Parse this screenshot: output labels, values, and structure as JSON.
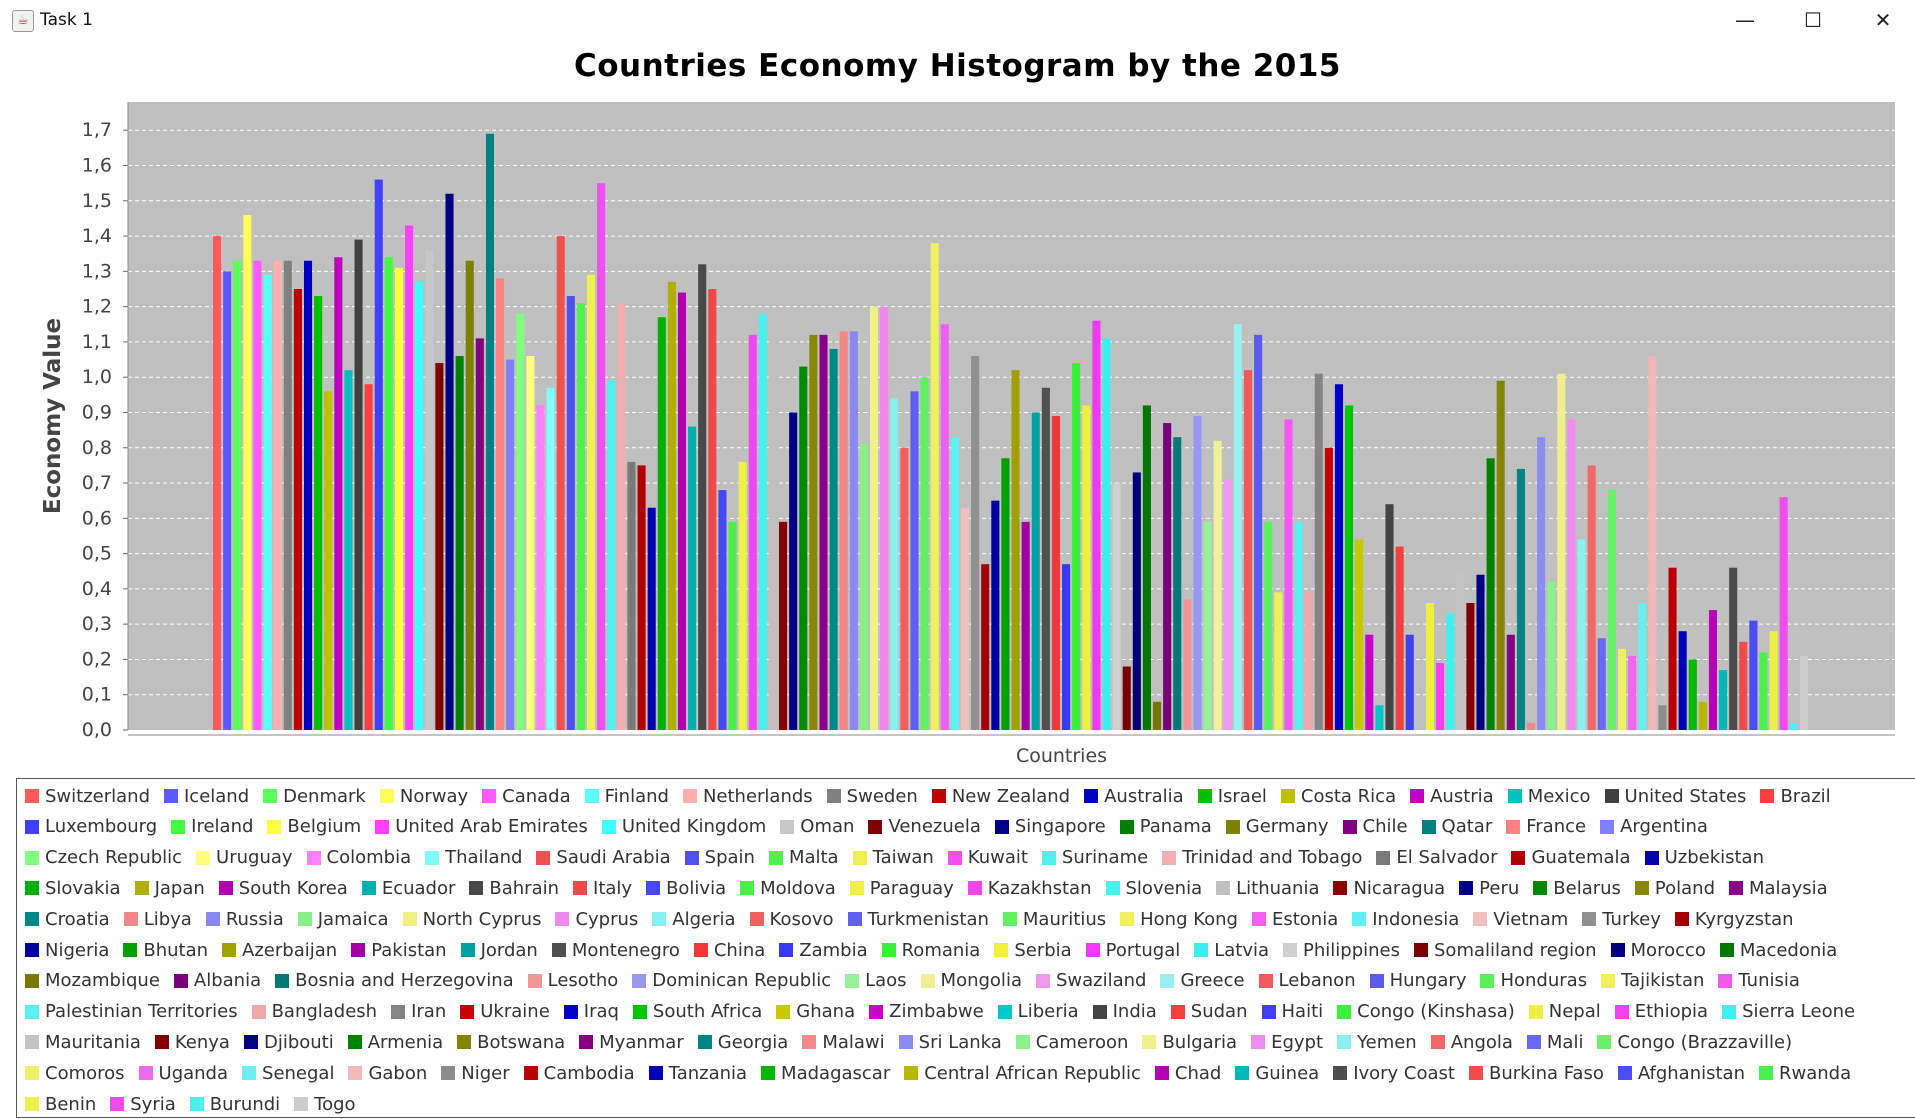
{
  "window": {
    "title": "Task 1",
    "minimize": "—",
    "maximize": "☐",
    "close": "✕"
  },
  "chart_data": {
    "type": "bar",
    "title": "Countries Economy Histogram by the 2015",
    "xlabel": "Countries",
    "ylabel": "Economy Value",
    "ylim": [
      0,
      1.78
    ],
    "yticks": [
      "0,0",
      "0,1",
      "0,2",
      "0,3",
      "0,4",
      "0,5",
      "0,6",
      "0,7",
      "0,8",
      "0,9",
      "1,0",
      "1,1",
      "1,2",
      "1,3",
      "1,4",
      "1,5",
      "1,6",
      "1,7"
    ],
    "grid": true,
    "legend_position": "bottom",
    "series": [
      {
        "name": "Switzerland",
        "value": 1.4,
        "color": "#ff5a5a"
      },
      {
        "name": "Iceland",
        "value": 1.3,
        "color": "#5a5aff"
      },
      {
        "name": "Denmark",
        "value": 1.33,
        "color": "#5aff5a"
      },
      {
        "name": "Norway",
        "value": 1.46,
        "color": "#ffff5a"
      },
      {
        "name": "Canada",
        "value": 1.33,
        "color": "#ff5aff"
      },
      {
        "name": "Finland",
        "value": 1.29,
        "color": "#5affff"
      },
      {
        "name": "Netherlands",
        "value": 1.33,
        "color": "#ffafaf"
      },
      {
        "name": "Sweden",
        "value": 1.33,
        "color": "#808080"
      },
      {
        "name": "New Zealand",
        "value": 1.25,
        "color": "#c00000"
      },
      {
        "name": "Australia",
        "value": 1.33,
        "color": "#0000c0"
      },
      {
        "name": "Israel",
        "value": 1.23,
        "color": "#00c000"
      },
      {
        "name": "Costa Rica",
        "value": 0.96,
        "color": "#c0c000"
      },
      {
        "name": "Austria",
        "value": 1.34,
        "color": "#c000c0"
      },
      {
        "name": "Mexico",
        "value": 1.02,
        "color": "#00c0c0"
      },
      {
        "name": "United States",
        "value": 1.39,
        "color": "#404040"
      },
      {
        "name": "Brazil",
        "value": 0.98,
        "color": "#ff4040"
      },
      {
        "name": "Luxembourg",
        "value": 1.56,
        "color": "#4040ff"
      },
      {
        "name": "Ireland",
        "value": 1.34,
        "color": "#40ff40"
      },
      {
        "name": "Belgium",
        "value": 1.31,
        "color": "#ffff40"
      },
      {
        "name": "United Arab Emirates",
        "value": 1.43,
        "color": "#ff40ff"
      },
      {
        "name": "United Kingdom",
        "value": 1.27,
        "color": "#40ffff"
      },
      {
        "name": "Oman",
        "value": 1.36,
        "color": "#c8c8c8"
      },
      {
        "name": "Venezuela",
        "value": 1.04,
        "color": "#800000"
      },
      {
        "name": "Singapore",
        "value": 1.52,
        "color": "#000080"
      },
      {
        "name": "Panama",
        "value": 1.06,
        "color": "#008000"
      },
      {
        "name": "Germany",
        "value": 1.33,
        "color": "#808000"
      },
      {
        "name": "Chile",
        "value": 1.11,
        "color": "#800080"
      },
      {
        "name": "Qatar",
        "value": 1.69,
        "color": "#008080"
      },
      {
        "name": "France",
        "value": 1.28,
        "color": "#ff8080"
      },
      {
        "name": "Argentina",
        "value": 1.05,
        "color": "#8080ff"
      },
      {
        "name": "Czech Republic",
        "value": 1.18,
        "color": "#80ff80"
      },
      {
        "name": "Uruguay",
        "value": 1.06,
        "color": "#ffff80"
      },
      {
        "name": "Colombia",
        "value": 0.92,
        "color": "#ff80ff"
      },
      {
        "name": "Thailand",
        "value": 0.97,
        "color": "#80ffff"
      },
      {
        "name": "Saudi Arabia",
        "value": 1.4,
        "color": "#f05050"
      },
      {
        "name": "Spain",
        "value": 1.23,
        "color": "#5050f0"
      },
      {
        "name": "Malta",
        "value": 1.21,
        "color": "#50f050"
      },
      {
        "name": "Taiwan",
        "value": 1.29,
        "color": "#f0f050"
      },
      {
        "name": "Kuwait",
        "value": 1.55,
        "color": "#f050f0"
      },
      {
        "name": "Suriname",
        "value": 0.99,
        "color": "#50f0f0"
      },
      {
        "name": "Trinidad and Tobago",
        "value": 1.21,
        "color": "#f0b0b0"
      },
      {
        "name": "El Salvador",
        "value": 0.76,
        "color": "#7a7a7a"
      },
      {
        "name": "Guatemala",
        "value": 0.75,
        "color": "#b00000"
      },
      {
        "name": "Uzbekistan",
        "value": 0.63,
        "color": "#0000b0"
      },
      {
        "name": "Slovakia",
        "value": 1.17,
        "color": "#00b000"
      },
      {
        "name": "Japan",
        "value": 1.27,
        "color": "#b0b000"
      },
      {
        "name": "South Korea",
        "value": 1.24,
        "color": "#b000b0"
      },
      {
        "name": "Ecuador",
        "value": 0.86,
        "color": "#00b0b0"
      },
      {
        "name": "Bahrain",
        "value": 1.32,
        "color": "#484848"
      },
      {
        "name": "Italy",
        "value": 1.25,
        "color": "#f04848"
      },
      {
        "name": "Bolivia",
        "value": 0.68,
        "color": "#4848f0"
      },
      {
        "name": "Moldova",
        "value": 0.59,
        "color": "#48f048"
      },
      {
        "name": "Paraguay",
        "value": 0.76,
        "color": "#f0f048"
      },
      {
        "name": "Kazakhstan",
        "value": 1.12,
        "color": "#f048f0"
      },
      {
        "name": "Slovenia",
        "value": 1.18,
        "color": "#48f0f0"
      },
      {
        "name": "Lithuania",
        "value": 1.15,
        "color": "#c0c0c0"
      },
      {
        "name": "Nicaragua",
        "value": 0.59,
        "color": "#880000"
      },
      {
        "name": "Peru",
        "value": 0.9,
        "color": "#000088"
      },
      {
        "name": "Belarus",
        "value": 1.03,
        "color": "#008800"
      },
      {
        "name": "Poland",
        "value": 1.12,
        "color": "#888800"
      },
      {
        "name": "Malaysia",
        "value": 1.12,
        "color": "#880088"
      },
      {
        "name": "Croatia",
        "value": 1.08,
        "color": "#008888"
      },
      {
        "name": "Libya",
        "value": 1.13,
        "color": "#f08888"
      },
      {
        "name": "Russia",
        "value": 1.13,
        "color": "#8888f0"
      },
      {
        "name": "Jamaica",
        "value": 0.81,
        "color": "#88f088"
      },
      {
        "name": "North Cyprus",
        "value": 1.2,
        "color": "#f0f088"
      },
      {
        "name": "Cyprus",
        "value": 1.2,
        "color": "#f088f0"
      },
      {
        "name": "Algeria",
        "value": 0.94,
        "color": "#88f0f0"
      },
      {
        "name": "Kosovo",
        "value": 0.8,
        "color": "#f06060"
      },
      {
        "name": "Turkmenistan",
        "value": 0.96,
        "color": "#6060f0"
      },
      {
        "name": "Mauritius",
        "value": 1.0,
        "color": "#60f060"
      },
      {
        "name": "Hong Kong",
        "value": 1.38,
        "color": "#f0f060"
      },
      {
        "name": "Estonia",
        "value": 1.15,
        "color": "#f060f0"
      },
      {
        "name": "Indonesia",
        "value": 0.83,
        "color": "#60f0f0"
      },
      {
        "name": "Vietnam",
        "value": 0.63,
        "color": "#f0c0c0"
      },
      {
        "name": "Turkey",
        "value": 1.06,
        "color": "#909090"
      },
      {
        "name": "Kyrgyzstan",
        "value": 0.47,
        "color": "#a00000"
      },
      {
        "name": "Nigeria",
        "value": 0.65,
        "color": "#0000a0"
      },
      {
        "name": "Bhutan",
        "value": 0.77,
        "color": "#00a000"
      },
      {
        "name": "Azerbaijan",
        "value": 1.02,
        "color": "#a0a000"
      },
      {
        "name": "Pakistan",
        "value": 0.59,
        "color": "#a000a0"
      },
      {
        "name": "Jordan",
        "value": 0.9,
        "color": "#00a0a0"
      },
      {
        "name": "Montenegro",
        "value": 0.97,
        "color": "#505050"
      },
      {
        "name": "China",
        "value": 0.89,
        "color": "#f03838"
      },
      {
        "name": "Zambia",
        "value": 0.47,
        "color": "#3838f0"
      },
      {
        "name": "Romania",
        "value": 1.04,
        "color": "#38f038"
      },
      {
        "name": "Serbia",
        "value": 0.92,
        "color": "#f0f038"
      },
      {
        "name": "Portugal",
        "value": 1.16,
        "color": "#f038f0"
      },
      {
        "name": "Latvia",
        "value": 1.11,
        "color": "#38f0f0"
      },
      {
        "name": "Philippines",
        "value": 0.7,
        "color": "#d0d0d0"
      },
      {
        "name": "Somaliland region",
        "value": 0.18,
        "color": "#780000"
      },
      {
        "name": "Morocco",
        "value": 0.73,
        "color": "#000078"
      },
      {
        "name": "Macedonia",
        "value": 0.92,
        "color": "#007800"
      },
      {
        "name": "Mozambique",
        "value": 0.08,
        "color": "#787800"
      },
      {
        "name": "Albania",
        "value": 0.87,
        "color": "#780078"
      },
      {
        "name": "Bosnia and Herzegovina",
        "value": 0.83,
        "color": "#007878"
      },
      {
        "name": "Lesotho",
        "value": 0.37,
        "color": "#f09898"
      },
      {
        "name": "Dominican Republic",
        "value": 0.89,
        "color": "#9898f0"
      },
      {
        "name": "Laos",
        "value": 0.59,
        "color": "#98f098"
      },
      {
        "name": "Mongolia",
        "value": 0.82,
        "color": "#f0f098"
      },
      {
        "name": "Swaziland",
        "value": 0.71,
        "color": "#f098f0"
      },
      {
        "name": "Greece",
        "value": 1.15,
        "color": "#98f0f0"
      },
      {
        "name": "Lebanon",
        "value": 1.02,
        "color": "#f05a5a"
      },
      {
        "name": "Hungary",
        "value": 1.12,
        "color": "#5a5af0"
      },
      {
        "name": "Honduras",
        "value": 0.59,
        "color": "#5af05a"
      },
      {
        "name": "Tajikistan",
        "value": 0.39,
        "color": "#f0f05a"
      },
      {
        "name": "Tunisia",
        "value": 0.88,
        "color": "#f05af0"
      },
      {
        "name": "Palestinian Territories",
        "value": 0.59,
        "color": "#5af0f0"
      },
      {
        "name": "Bangladesh",
        "value": 0.39,
        "color": "#f0a8a8"
      },
      {
        "name": "Iran",
        "value": 1.01,
        "color": "#848484"
      },
      {
        "name": "Ukraine",
        "value": 0.8,
        "color": "#c80000"
      },
      {
        "name": "Iraq",
        "value": 0.98,
        "color": "#0000c8"
      },
      {
        "name": "South Africa",
        "value": 0.92,
        "color": "#00c800"
      },
      {
        "name": "Ghana",
        "value": 0.54,
        "color": "#c8c800"
      },
      {
        "name": "Zimbabwe",
        "value": 0.27,
        "color": "#c800c8"
      },
      {
        "name": "Liberia",
        "value": 0.07,
        "color": "#00c8c8"
      },
      {
        "name": "India",
        "value": 0.64,
        "color": "#444444"
      },
      {
        "name": "Sudan",
        "value": 0.52,
        "color": "#f04040"
      },
      {
        "name": "Haiti",
        "value": 0.27,
        "color": "#4040f0"
      },
      {
        "name": "Congo (Kinshasa)",
        "value": 0.0,
        "color": "#40f040"
      },
      {
        "name": "Nepal",
        "value": 0.36,
        "color": "#f0f040"
      },
      {
        "name": "Ethiopia",
        "value": 0.19,
        "color": "#f040f0"
      },
      {
        "name": "Sierra Leone",
        "value": 0.33,
        "color": "#40f0f0"
      },
      {
        "name": "Mauritania",
        "value": 0.45,
        "color": "#c4c4c4"
      },
      {
        "name": "Kenya",
        "value": 0.36,
        "color": "#840000"
      },
      {
        "name": "Djibouti",
        "value": 0.44,
        "color": "#000084"
      },
      {
        "name": "Armenia",
        "value": 0.77,
        "color": "#008400"
      },
      {
        "name": "Botswana",
        "value": 0.99,
        "color": "#848400"
      },
      {
        "name": "Myanmar",
        "value": 0.27,
        "color": "#840084"
      },
      {
        "name": "Georgia",
        "value": 0.74,
        "color": "#008484"
      },
      {
        "name": "Malawi",
        "value": 0.02,
        "color": "#f08c8c"
      },
      {
        "name": "Sri Lanka",
        "value": 0.83,
        "color": "#8c8cf0"
      },
      {
        "name": "Cameroon",
        "value": 0.42,
        "color": "#8cf08c"
      },
      {
        "name": "Bulgaria",
        "value": 1.01,
        "color": "#f0f08c"
      },
      {
        "name": "Egypt",
        "value": 0.88,
        "color": "#f08cf0"
      },
      {
        "name": "Yemen",
        "value": 0.54,
        "color": "#8cf0f0"
      },
      {
        "name": "Angola",
        "value": 0.75,
        "color": "#f06868"
      },
      {
        "name": "Mali",
        "value": 0.26,
        "color": "#6868f0"
      },
      {
        "name": "Congo (Brazzaville)",
        "value": 0.68,
        "color": "#68f068"
      },
      {
        "name": "Comoros",
        "value": 0.23,
        "color": "#f0f068"
      },
      {
        "name": "Uganda",
        "value": 0.21,
        "color": "#f068f0"
      },
      {
        "name": "Senegal",
        "value": 0.36,
        "color": "#68f0f0"
      },
      {
        "name": "Gabon",
        "value": 1.06,
        "color": "#f0b8b8"
      },
      {
        "name": "Niger",
        "value": 0.07,
        "color": "#8c8c8c"
      },
      {
        "name": "Cambodia",
        "value": 0.46,
        "color": "#b80000"
      },
      {
        "name": "Tanzania",
        "value": 0.28,
        "color": "#0000b8"
      },
      {
        "name": "Madagascar",
        "value": 0.2,
        "color": "#00b800"
      },
      {
        "name": "Central African Republic",
        "value": 0.08,
        "color": "#b8b800"
      },
      {
        "name": "Chad",
        "value": 0.34,
        "color": "#b800b8"
      },
      {
        "name": "Guinea",
        "value": 0.17,
        "color": "#00b8b8"
      },
      {
        "name": "Ivory Coast",
        "value": 0.46,
        "color": "#4c4c4c"
      },
      {
        "name": "Burkina Faso",
        "value": 0.25,
        "color": "#f04c4c"
      },
      {
        "name": "Afghanistan",
        "value": 0.31,
        "color": "#4c4cf0"
      },
      {
        "name": "Rwanda",
        "value": 0.22,
        "color": "#4cf04c"
      },
      {
        "name": "Benin",
        "value": 0.28,
        "color": "#f0f04c"
      },
      {
        "name": "Syria",
        "value": 0.66,
        "color": "#f04cf0"
      },
      {
        "name": "Burundi",
        "value": 0.02,
        "color": "#4cf0f0"
      },
      {
        "name": "Togo",
        "value": 0.21,
        "color": "#cccccc"
      }
    ]
  }
}
